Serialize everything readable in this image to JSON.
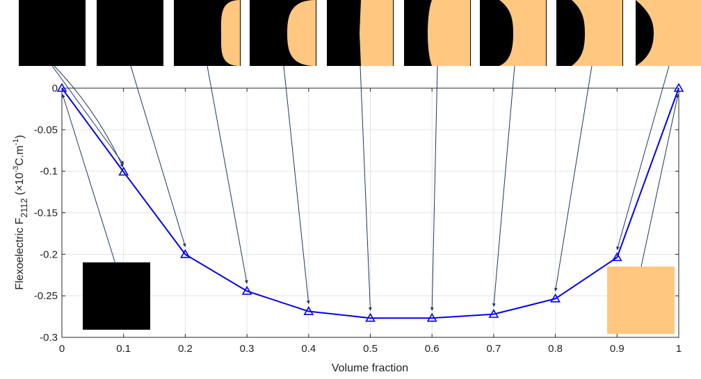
{
  "chart_data": {
    "type": "line",
    "xlabel": "Volume fraction",
    "ylabel": {
      "text": "Flexoelectric F",
      "subscript": "2112",
      "unit_open": " (×10",
      "unit_exp1": "-3",
      "unit_mid": "C.m",
      "unit_exp2": "-1",
      "unit_close": ")"
    },
    "xlim": [
      0,
      1
    ],
    "ylim": [
      -0.3,
      0
    ],
    "x_ticks": [
      "0",
      "0.1",
      "0.2",
      "0.3",
      "0.4",
      "0.5",
      "0.6",
      "0.7",
      "0.8",
      "0.9",
      "1"
    ],
    "y_ticks": [
      "0",
      "-0.05",
      "-0.1",
      "-0.15",
      "-0.2",
      "-0.25",
      "-0.3"
    ],
    "grid": true,
    "series": [
      {
        "x": [
          0,
          0.1,
          0.2,
          0.3,
          0.4,
          0.5,
          0.6,
          0.7,
          0.8,
          0.9,
          1
        ],
        "values": [
          0,
          -0.1008,
          -0.2001,
          -0.2443,
          -0.2687,
          -0.2768,
          -0.2768,
          -0.2721,
          -0.2535,
          -0.2038,
          0
        ],
        "color": "#0000ee",
        "marker": "triangle"
      }
    ],
    "inset_colors": {
      "matrix": "#000000",
      "inclusion": "#ffc77f"
    },
    "annotation_arrow_color": "#1f3564"
  }
}
